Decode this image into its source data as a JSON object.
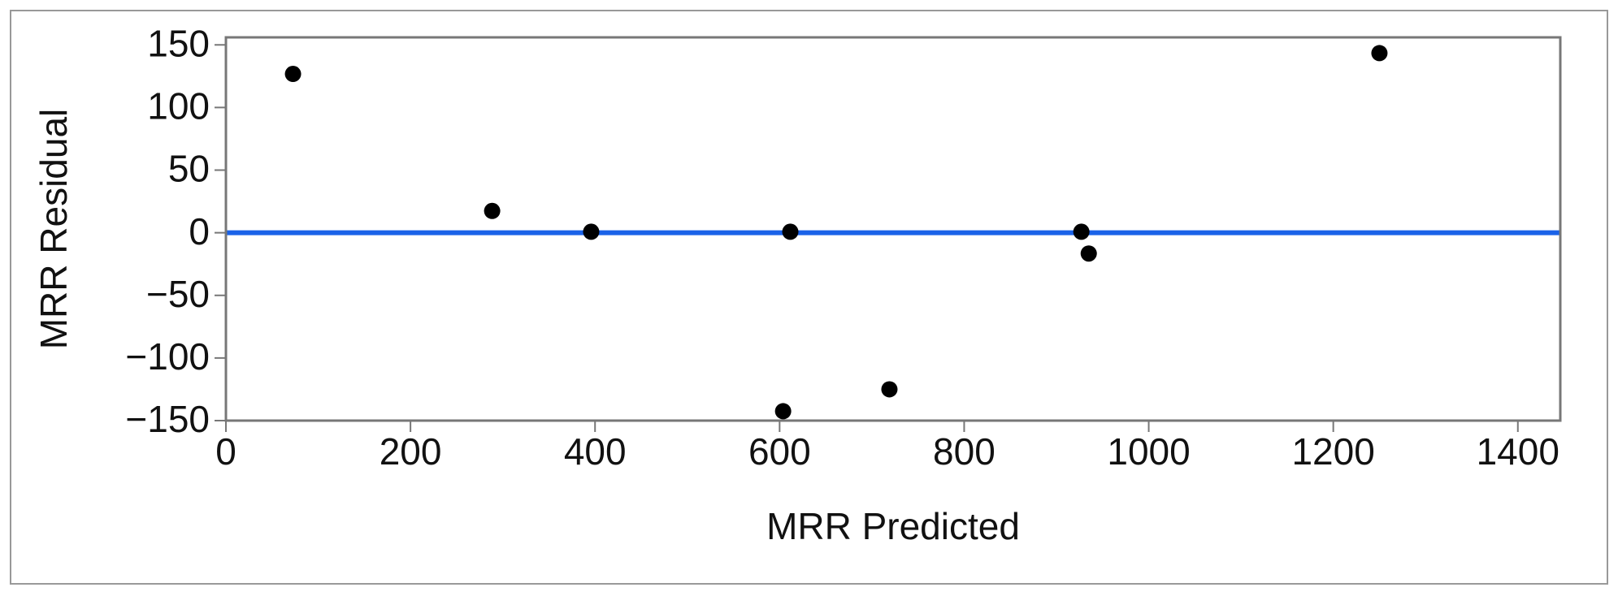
{
  "chart_data": {
    "type": "scatter",
    "x_label": "MRR Predicted",
    "y_label": "MRR Residual",
    "x": [
      72.7,
      288.5,
      395.8,
      611.6,
      603.8,
      719,
      927,
      935,
      1250
    ],
    "y": [
      126.8,
      17.4,
      0.8,
      0.8,
      -142.5,
      -125,
      0.8,
      -16.6,
      143.4
    ],
    "color": "#000000",
    "reference_line": {
      "y": 0,
      "color": "#1a62e8"
    },
    "xlim": [
      0,
      1446
    ],
    "ylim": [
      -150,
      156
    ],
    "xticks": [
      0,
      200,
      400,
      600,
      800,
      1000,
      1200,
      1400
    ],
    "yticks": [
      {
        "value": -150,
        "label": "−150"
      },
      {
        "value": -100,
        "label": "−100"
      },
      {
        "value": -50,
        "label": "−50"
      },
      0,
      50,
      100,
      150
    ],
    "grid": false
  }
}
